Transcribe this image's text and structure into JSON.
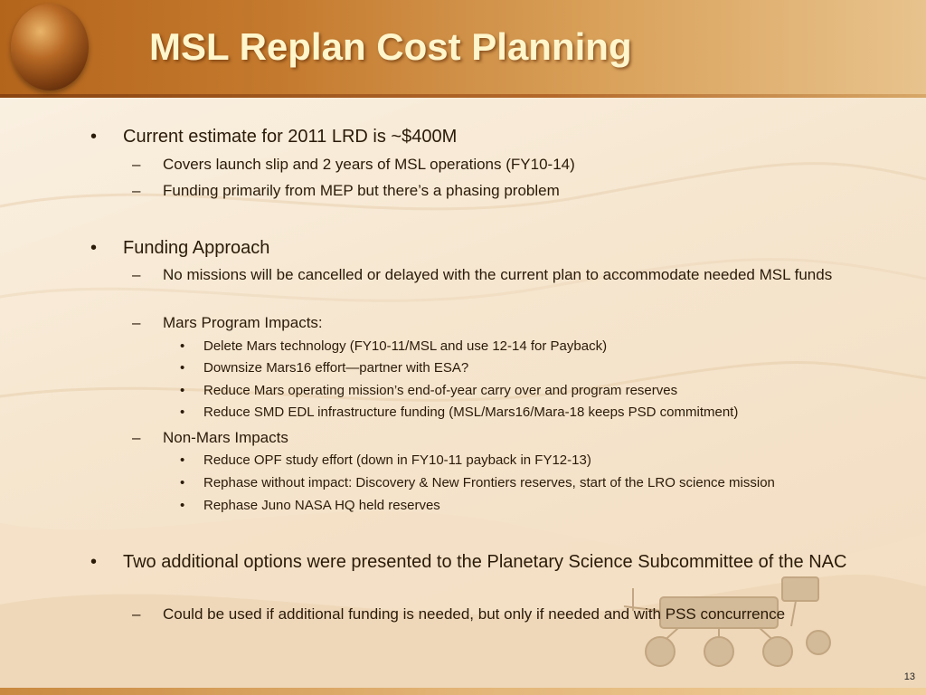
{
  "title": "MSL Replan Cost Planning",
  "page_number": "13",
  "markers": {
    "level1": "•",
    "level2": "–",
    "level3": "•"
  },
  "sections": [
    {
      "text": "Current estimate for 2011 LRD is ~$400M",
      "subitems": [
        {
          "text": "Covers launch slip and 2 years of MSL operations (FY10-14)"
        },
        {
          "text": "Funding primarily from MEP but there’s a phasing problem"
        }
      ]
    },
    {
      "text": "Funding Approach",
      "subitems": [
        {
          "text": "No missions will be cancelled or delayed with the current plan to accommodate needed MSL funds"
        },
        {
          "text": "Mars Program Impacts:",
          "subitems": [
            "Delete Mars technology (FY10-11/MSL and use 12-14 for Payback)",
            "Downsize Mars16 effort—partner with ESA?",
            "Reduce Mars operating mission’s end-of-year carry over and program reserves",
            "Reduce SMD EDL infrastructure funding (MSL/Mars16/Mara-18 keeps PSD commitment)"
          ]
        },
        {
          "text": "Non-Mars Impacts",
          "subitems": [
            "Reduce OPF study effort (down in FY10-11 payback in FY12-13)",
            "Rephase without impact: Discovery & New Frontiers reserves, start of the LRO science mission",
            "Rephase Juno NASA HQ held reserves"
          ]
        }
      ]
    },
    {
      "text": "Two additional options were presented to the Planetary Science Subcommittee of the NAC",
      "subitems": [
        {
          "text": "Could be used if additional funding is needed, but only if needed and with PSS concurrence"
        }
      ]
    }
  ]
}
